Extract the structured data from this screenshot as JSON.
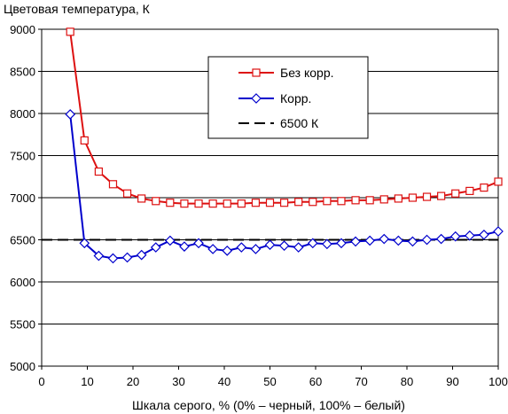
{
  "chart_data": {
    "type": "line",
    "title": "",
    "ylabel": "Цветовая температура, К",
    "xlabel": "Шкала серого, % (0% – черный, 100% – белый)",
    "xlim": [
      0,
      100
    ],
    "ylim": [
      5000,
      9000
    ],
    "x_ticks": [
      0,
      10,
      20,
      30,
      40,
      50,
      60,
      70,
      80,
      90,
      100
    ],
    "y_ticks": [
      5000,
      5500,
      6000,
      6500,
      7000,
      7500,
      8000,
      8500,
      9000
    ],
    "grid": "horizontal",
    "legend_position": "top-right",
    "x": [
      6.25,
      9.375,
      12.5,
      15.625,
      18.75,
      21.875,
      25,
      28.125,
      31.25,
      34.375,
      37.5,
      40.625,
      43.75,
      46.875,
      50,
      53.125,
      56.25,
      59.375,
      62.5,
      65.625,
      68.75,
      71.875,
      75,
      78.125,
      81.25,
      84.375,
      87.5,
      90.625,
      93.75,
      96.875,
      100
    ],
    "series": [
      {
        "name": "Без корр.",
        "color": "#dd1111",
        "marker": "square",
        "line_style": "solid",
        "values": [
          8970,
          7680,
          7310,
          7160,
          7050,
          6990,
          6960,
          6940,
          6930,
          6930,
          6930,
          6930,
          6930,
          6940,
          6940,
          6940,
          6950,
          6950,
          6960,
          6960,
          6970,
          6970,
          6980,
          6990,
          7000,
          7010,
          7020,
          7050,
          7080,
          7120,
          7190
        ]
      },
      {
        "name": "Корр.",
        "color": "#0000cc",
        "marker": "diamond",
        "line_style": "solid",
        "values": [
          7990,
          6460,
          6310,
          6280,
          6290,
          6320,
          6410,
          6490,
          6420,
          6460,
          6390,
          6370,
          6410,
          6390,
          6440,
          6430,
          6410,
          6460,
          6450,
          6460,
          6480,
          6490,
          6510,
          6490,
          6480,
          6500,
          6510,
          6540,
          6550,
          6560,
          6600
        ]
      },
      {
        "name": "6500 К",
        "color": "#000000",
        "marker": "none",
        "line_style": "dashed",
        "values": [
          6500,
          6500,
          6500,
          6500,
          6500,
          6500,
          6500,
          6500,
          6500,
          6500,
          6500,
          6500,
          6500,
          6500,
          6500,
          6500,
          6500,
          6500,
          6500,
          6500,
          6500,
          6500,
          6500,
          6500,
          6500,
          6500,
          6500,
          6500,
          6500,
          6500,
          6500
        ]
      }
    ]
  }
}
